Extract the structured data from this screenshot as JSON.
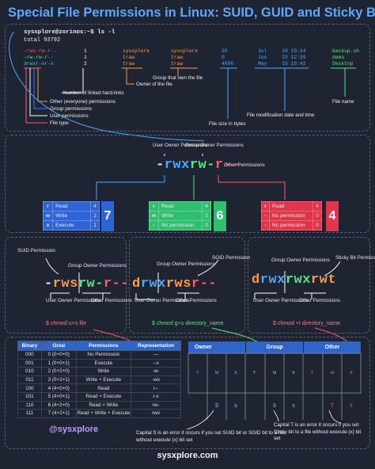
{
  "title": "Special File Permissions in Linux: SUID, GUID and Sticky Bit",
  "terminal": {
    "prompt": "sysxplore@zorinos:~$ ls -l",
    "total": "total 93792",
    "rows": [
      {
        "perm": "-rwx-rw-r--",
        "links": "1",
        "owner": "sysxplore",
        "group": "sysxplore",
        "size": "20",
        "month": "Jul",
        "day": "18",
        "time": "19:14",
        "name": "backup.sh"
      },
      {
        "perm": "-rw-rw-r--",
        "links": "1",
        "owner": "traw",
        "group": "traw",
        "size": "0",
        "month": "Jun",
        "day": "23",
        "time": "12:59",
        "name": "demo"
      },
      {
        "perm": "drwxr-xr-x",
        "links": "2",
        "owner": "traw",
        "group": "traw",
        "size": "4096",
        "month": "May",
        "day": "15",
        "time": "10:42",
        "name": "Desktop"
      }
    ],
    "labels": {
      "links": "Number of linked hard-links",
      "owner": "Owner of the file",
      "group": "Group that own the file",
      "other_perms": "Other (everyone) permissions",
      "group_perms": "Group permissions",
      "user_perms": "User permissions",
      "file_type": "File type",
      "size": "File size in bytes",
      "mod_date": "File modification date and time",
      "file_name": "File name"
    }
  },
  "breakdown": {
    "dash": "-",
    "user": "rwx",
    "group": "rw-",
    "other": "r--",
    "user_label": "User Owner Permissions",
    "group_label": "Group Owner Permissions",
    "other_label": "Other Permissions",
    "tables": [
      {
        "color": "#2f64d6",
        "rows": [
          [
            "r",
            "Read",
            "4"
          ],
          [
            "w",
            "Write",
            "2"
          ],
          [
            "x",
            "Execute",
            "1"
          ]
        ],
        "total": "7"
      },
      {
        "color": "#2fbf6f",
        "rows": [
          [
            "r",
            "Read",
            "4"
          ],
          [
            "w",
            "Write",
            "2"
          ],
          [
            "-",
            "No permission",
            "0"
          ]
        ],
        "total": "6"
      },
      {
        "color": "#e0354a",
        "rows": [
          [
            "r",
            "Read",
            "4"
          ],
          [
            "-",
            "No permission",
            "0"
          ],
          [
            "-",
            "No permission",
            "0"
          ]
        ],
        "total": "4"
      }
    ]
  },
  "suid": {
    "label": "SUID Permission",
    "dash": "-",
    "user": "rws",
    "group": "rw-",
    "other": "r--",
    "group_label": "Group Owner Permissions",
    "user_label": "User Owner Permissions",
    "other_label": "Other Permissions",
    "cmd": "$ chmod u+s file"
  },
  "sgid": {
    "label": "SGID Permission",
    "dash": "d",
    "user": "rwx",
    "group": "rws",
    "other": "r--",
    "group_label": "Group Owner Permissions",
    "user_label": "User Owner Permissions",
    "other_label": "Other Permissions",
    "cmd": "$ chmod g+s directory_name"
  },
  "sticky": {
    "label": "Sticky Bit Permission",
    "dash": "d",
    "user": "rwx",
    "group": "rwx",
    "other": "rwt",
    "group_label": "Group Owner Permissions",
    "user_label": "User Owner Permissions",
    "other_label": "Other Permissions",
    "cmd": "$ chmod +t directory_name"
  },
  "octal_table": {
    "headers": [
      "Binary",
      "Octal",
      "Permissions",
      "Representation"
    ],
    "rows": [
      [
        "000",
        "0 (0+0+0)",
        "No Permission",
        "---"
      ],
      [
        "001",
        "1 (0+0+1)",
        "Execute",
        "--x"
      ],
      [
        "010",
        "2 (0+2+0)",
        "Write",
        "-w-"
      ],
      [
        "011",
        "3 (0+2+1)",
        "Write + Execute",
        "-wx"
      ],
      [
        "100",
        "4 (4+0+0)",
        "Read",
        "r--"
      ],
      [
        "101",
        "5 (4+0+1)",
        "Read + Execute",
        "r-x"
      ],
      [
        "110",
        "6 (4+2+0)",
        "Read + Write",
        "rw-"
      ],
      [
        "111",
        "7 (4+2+1)",
        "Read + Write + Execute",
        "rwx"
      ]
    ]
  },
  "grid": {
    "owner": "Owner",
    "group": "Group",
    "other": "Other",
    "cells": [
      "r",
      "w",
      "x",
      "r",
      "w",
      "x",
      "r",
      "w",
      "x"
    ],
    "special_owner": [
      "S",
      "s"
    ],
    "special_group": [
      "S",
      "s"
    ],
    "special_other": [
      "T",
      "t"
    ],
    "note_s": "Capital S is an error it occurs if you set SUID bit or SGID bit to a file without execute (x) bit set",
    "note_t": "Capital T is an error it occurs if you set Sticky bit to a file without execute (x) bit set"
  },
  "handle": "@sysxplore",
  "footer": "sysxplore.com"
}
